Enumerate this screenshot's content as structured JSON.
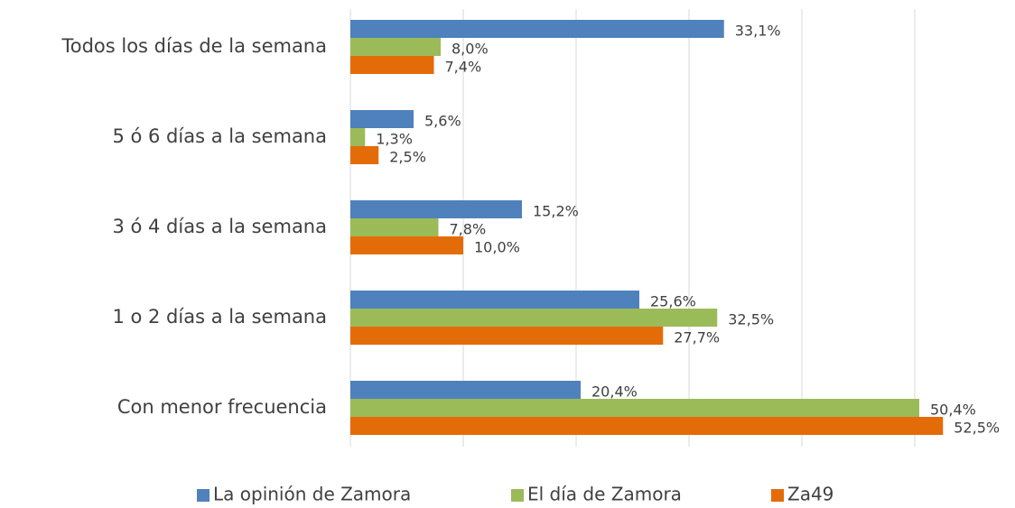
{
  "chart_data": {
    "type": "hbar",
    "categories": [
      "Todos los días de la semana",
      "5 ó 6 días a la semana",
      "3 ó 4 días a la semana",
      "1 o 2 días a la semana",
      "Con menor frecuencia"
    ],
    "series": [
      {
        "name": "La opinión de Zamora",
        "color": "#4f81bd",
        "values": [
          33.1,
          5.6,
          15.2,
          25.6,
          20.4
        ],
        "value_labels": [
          "33,1%",
          "5,6%",
          "15,2%",
          "25,6%",
          "20,4%"
        ]
      },
      {
        "name": "El día de Zamora",
        "color": "#9bbb59",
        "values": [
          8.0,
          1.3,
          7.8,
          32.5,
          50.4
        ],
        "value_labels": [
          "8,0%",
          "1,3%",
          "7,8%",
          "32,5%",
          "50,4%"
        ]
      },
      {
        "name": "Za49",
        "color": "#e36c09",
        "values": [
          7.4,
          2.5,
          10.0,
          27.7,
          52.5
        ],
        "value_labels": [
          "7,4%",
          "2,5%",
          "10,0%",
          "27,7%",
          "52,5%"
        ]
      }
    ],
    "xlim": [
      0,
      55
    ],
    "xticks": [
      0,
      10,
      20,
      30,
      40,
      50
    ],
    "grid": true,
    "legend": "bottom"
  }
}
